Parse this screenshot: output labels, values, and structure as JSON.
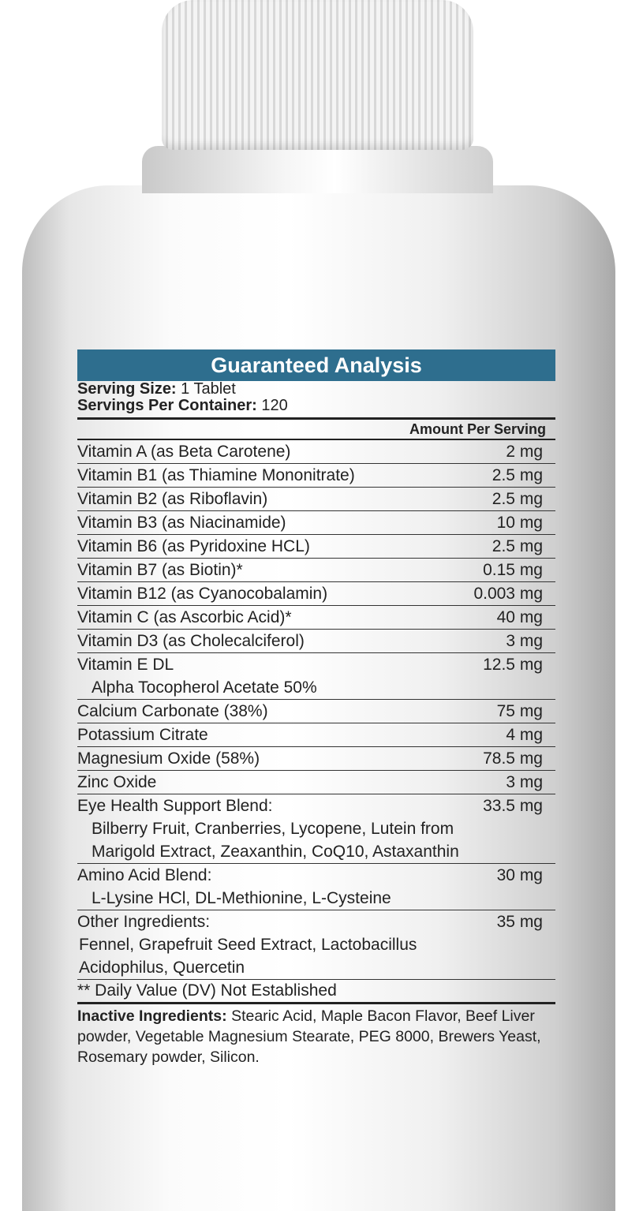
{
  "header": {
    "title": "Guaranteed Analysis"
  },
  "serving": {
    "size_label": "Serving Size:",
    "size_value": "1 Tablet",
    "per_container_label": "Servings Per Container:",
    "per_container_value": "120"
  },
  "amount_header": "Amount Per Serving",
  "rows": [
    {
      "name": "Vitamin A (as Beta Carotene)",
      "amount": "2 mg"
    },
    {
      "name": "Vitamin B1 (as Thiamine Mononitrate)",
      "amount": "2.5 mg"
    },
    {
      "name": "Vitamin B2 (as Riboflavin)",
      "amount": "2.5 mg"
    },
    {
      "name": "Vitamin B3 (as Niacinamide)",
      "amount": "10 mg"
    },
    {
      "name": "Vitamin B6 (as Pyridoxine HCL)",
      "amount": "2.5 mg"
    },
    {
      "name": "Vitamin B7 (as Biotin)*",
      "amount": "0.15 mg"
    },
    {
      "name": "Vitamin B12 (as Cyanocobalamin)",
      "amount": "0.003 mg"
    },
    {
      "name": "Vitamin C (as Ascorbic Acid)*",
      "amount": "40 mg"
    },
    {
      "name": "Vitamin D3 (as Cholecalciferol)",
      "amount": "3 mg"
    },
    {
      "name": "Vitamin E DL",
      "sub": "Alpha Tocopherol Acetate 50%",
      "amount": "12.5 mg"
    },
    {
      "name": "Calcium Carbonate (38%)",
      "amount": "75 mg"
    },
    {
      "name": "Potassium Citrate",
      "amount": "4 mg"
    },
    {
      "name": "Magnesium Oxide (58%)",
      "amount": "78.5 mg"
    },
    {
      "name": "Zinc Oxide",
      "amount": "3 mg"
    },
    {
      "name": "Eye Health Support Blend:",
      "sub": "Bilberry Fruit, Cranberries, Lycopene, Lutein from Marigold Extract, Zeaxanthin, CoQ10, Astaxanthin",
      "amount": "33.5 mg"
    },
    {
      "name": "Amino Acid Blend:",
      "sub": "L-Lysine HCl, DL-Methionine, L-Cysteine",
      "amount": "30 mg"
    },
    {
      "name": "Other Ingredients:",
      "sub": "Fennel, Grapefruit Seed Extract, Lactobacillus Acidophilus, Quercetin",
      "amount": "35 mg"
    }
  ],
  "dv_note": "** Daily Value (DV) Not Established",
  "inactive": {
    "label": "Inactive Ingredients:",
    "text": "Stearic Acid, Maple Bacon Flavor, Beef Liver powder, Vegetable Magnesium Stearate, PEG 8000, Brewers Yeast, Rosemary powder, Silicon."
  },
  "colors": {
    "header_bg": "#2e6e8e"
  }
}
